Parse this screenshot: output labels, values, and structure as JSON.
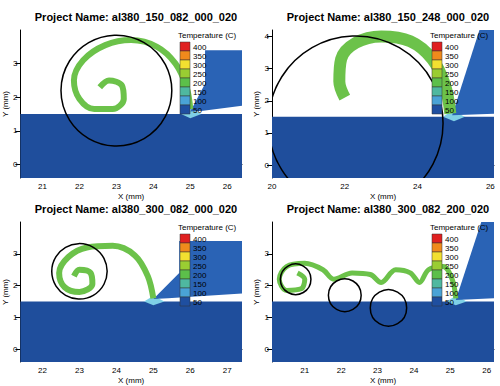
{
  "chart_data": [
    {
      "type": "contour",
      "title": "Project Name: al380_150_082_000_020",
      "x_label": "X (mm)",
      "y_label": "Y (mm)",
      "xlim": [
        20.4,
        26.4
      ],
      "xticks": [
        21,
        22,
        23,
        24,
        25,
        26
      ],
      "ylim": [
        -0.4,
        4.0
      ],
      "yticks": [
        0,
        1,
        2,
        3
      ],
      "workpiece": {
        "color": "#1f4e9c",
        "points": [
          [
            20.4,
            -0.4
          ],
          [
            26.4,
            -0.4
          ],
          [
            26.4,
            1.5
          ],
          [
            20.4,
            1.5
          ]
        ]
      },
      "heat_zone": {
        "color": "#7fd0e6",
        "points": [
          [
            24.75,
            1.5
          ],
          [
            25.0,
            1.68
          ],
          [
            25.3,
            1.5
          ],
          [
            25.0,
            1.38
          ]
        ]
      },
      "tool": {
        "color": "#2a63b5",
        "points": [
          [
            25.0,
            1.58
          ],
          [
            25.4,
            2.4
          ],
          [
            25.4,
            3.4
          ],
          [
            26.4,
            3.4
          ],
          [
            26.4,
            1.75
          ],
          [
            25.35,
            1.6
          ]
        ]
      },
      "chip": {
        "color": "#6cc24a",
        "points": [
          [
            25.0,
            1.65
          ],
          [
            24.9,
            2.3
          ],
          [
            24.6,
            3.0
          ],
          [
            24.1,
            3.5
          ],
          [
            23.4,
            3.7
          ],
          [
            22.7,
            3.55
          ],
          [
            22.1,
            3.1
          ],
          [
            21.85,
            2.5
          ],
          [
            22.0,
            1.95
          ],
          [
            22.4,
            1.65
          ],
          [
            22.9,
            1.65
          ],
          [
            23.2,
            1.95
          ],
          [
            23.15,
            2.35
          ],
          [
            22.8,
            2.5
          ],
          [
            22.55,
            2.3
          ]
        ]
      },
      "circle_color": "#000000",
      "circles": [
        {
          "center": [
            23.0,
            2.2
          ],
          "radius": 1.5
        }
      ],
      "colorbar": {
        "title": "Temperature (C)",
        "ticks": [
          50,
          100,
          150,
          200,
          250,
          300,
          350,
          400
        ],
        "colors": [
          "#1f4fa0",
          "#4aa3d6",
          "#4fb8a0",
          "#5cbf4a",
          "#9acd32",
          "#f2e030",
          "#f08a1c",
          "#e02020"
        ]
      }
    },
    {
      "type": "contour",
      "title": "Project Name: al380_150_248_000_020",
      "x_label": "X (mm)",
      "y_label": "Y (mm)",
      "xlim": [
        20.0,
        26.1
      ],
      "xticks": [
        20,
        22,
        24,
        26
      ],
      "ylim": [
        -0.4,
        4.2
      ],
      "yticks": [
        0,
        1,
        2,
        3,
        4
      ],
      "workpiece": {
        "color": "#1f4e9c",
        "points": [
          [
            20.0,
            -0.4
          ],
          [
            26.1,
            -0.4
          ],
          [
            26.1,
            1.5
          ],
          [
            20.0,
            1.5
          ]
        ]
      },
      "heat_zone": {
        "color": "#7fd0e6",
        "points": [
          [
            24.7,
            1.5
          ],
          [
            24.95,
            1.7
          ],
          [
            25.3,
            1.5
          ],
          [
            25.0,
            1.36
          ]
        ]
      },
      "tool": {
        "color": "#2a63b5",
        "points": [
          [
            24.95,
            1.55
          ],
          [
            25.7,
            4.2
          ],
          [
            26.1,
            4.2
          ],
          [
            26.1,
            1.6
          ]
        ]
      },
      "chip": {
        "color": "#6cc24a",
        "points": [
          [
            24.9,
            1.6
          ],
          [
            24.75,
            2.5
          ],
          [
            24.4,
            3.3
          ],
          [
            23.8,
            3.85
          ],
          [
            23.0,
            4.0
          ],
          [
            22.3,
            3.8
          ],
          [
            21.9,
            3.3
          ],
          [
            21.85,
            2.6
          ],
          [
            22.0,
            2.1
          ]
        ]
      },
      "circle_color": "#000000",
      "circles": [
        {
          "center": [
            22.3,
            1.3
          ],
          "radius": 2.4
        }
      ],
      "colorbar": {
        "title": "Temperature (C)",
        "ticks": [
          50,
          100,
          150,
          200,
          250,
          300,
          350,
          400
        ],
        "colors": [
          "#1f4fa0",
          "#4aa3d6",
          "#4fb8a0",
          "#5cbf4a",
          "#9acd32",
          "#f2e030",
          "#f08a1c",
          "#e02020"
        ]
      }
    },
    {
      "type": "contour",
      "title": "Project Name: al380_300_082_000_020",
      "x_label": "X (mm)",
      "y_label": "Y (mm)",
      "xlim": [
        21.4,
        27.4
      ],
      "xticks": [
        22,
        23,
        24,
        25,
        26,
        27
      ],
      "ylim": [
        -0.4,
        4.0
      ],
      "yticks": [
        0,
        1,
        2,
        3
      ],
      "workpiece": {
        "color": "#1f4e9c",
        "points": [
          [
            21.4,
            -0.4
          ],
          [
            27.4,
            -0.4
          ],
          [
            27.4,
            1.5
          ],
          [
            21.4,
            1.5
          ]
        ]
      },
      "heat_zone": {
        "color": "#7fd0e6",
        "points": [
          [
            24.75,
            1.5
          ],
          [
            25.0,
            1.68
          ],
          [
            25.3,
            1.5
          ],
          [
            25.0,
            1.38
          ]
        ]
      },
      "tool": {
        "color": "#2a63b5",
        "points": [
          [
            25.0,
            1.58
          ],
          [
            25.7,
            2.4
          ],
          [
            25.7,
            3.4
          ],
          [
            27.4,
            3.4
          ],
          [
            27.4,
            1.75
          ],
          [
            25.4,
            1.6
          ]
        ]
      },
      "chip": {
        "color": "#6cc24a",
        "points": [
          [
            25.0,
            1.6
          ],
          [
            24.85,
            2.3
          ],
          [
            24.5,
            2.95
          ],
          [
            23.9,
            3.25
          ],
          [
            23.2,
            3.2
          ],
          [
            22.7,
            2.9
          ],
          [
            22.45,
            2.4
          ],
          [
            22.6,
            1.95
          ],
          [
            23.0,
            1.8
          ],
          [
            23.35,
            2.05
          ],
          [
            23.3,
            2.4
          ],
          [
            23.0,
            2.5
          ],
          [
            22.85,
            2.3
          ]
        ]
      },
      "circle_color": "#000000",
      "circles": [
        {
          "center": [
            23.0,
            2.45
          ],
          "radius": 0.75
        }
      ],
      "colorbar": {
        "title": "Temperature (C)",
        "ticks": [
          50,
          100,
          150,
          200,
          250,
          300,
          350,
          400
        ],
        "colors": [
          "#1f4fa0",
          "#4aa3d6",
          "#4fb8a0",
          "#5cbf4a",
          "#9acd32",
          "#f2e030",
          "#f08a1c",
          "#e02020"
        ]
      }
    },
    {
      "type": "contour",
      "title": "Project Name: al380_300_082_200_020",
      "x_label": "X (mm)",
      "y_label": "Y (mm)",
      "xlim": [
        20.1,
        26.2
      ],
      "xticks": [
        21,
        22,
        23,
        24,
        25,
        26
      ],
      "ylim": [
        -0.4,
        4.0
      ],
      "yticks": [
        0,
        1,
        2,
        3
      ],
      "workpiece": {
        "color": "#1f4e9c",
        "points": [
          [
            20.1,
            -0.4
          ],
          [
            26.2,
            -0.4
          ],
          [
            26.2,
            1.5
          ],
          [
            20.1,
            1.5
          ]
        ]
      },
      "heat_zone": {
        "color": "#7fd0e6",
        "points": [
          [
            24.9,
            1.5
          ],
          [
            25.15,
            1.68
          ],
          [
            25.45,
            1.5
          ],
          [
            25.15,
            1.38
          ]
        ]
      },
      "tool": {
        "color": "#2a63b5",
        "points": [
          [
            25.15,
            1.55
          ],
          [
            25.85,
            4.0
          ],
          [
            26.2,
            4.0
          ],
          [
            26.2,
            1.6
          ]
        ]
      },
      "chip": {
        "color": "#6cc24a",
        "points": [
          [
            25.15,
            1.6
          ],
          [
            25.05,
            2.2
          ],
          [
            24.8,
            2.6
          ],
          [
            24.4,
            2.5
          ],
          [
            24.15,
            2.1
          ],
          [
            23.9,
            2.4
          ],
          [
            23.5,
            2.5
          ],
          [
            23.1,
            2.1
          ],
          [
            22.8,
            2.35
          ],
          [
            22.3,
            2.4
          ],
          [
            21.8,
            2.2
          ],
          [
            21.5,
            2.5
          ],
          [
            21.0,
            2.7
          ],
          [
            20.5,
            2.6
          ],
          [
            20.3,
            2.2
          ],
          [
            20.5,
            1.85
          ],
          [
            20.9,
            1.9
          ],
          [
            21.0,
            2.2
          ],
          [
            20.8,
            2.4
          ]
        ]
      },
      "circle_color": "#000000",
      "circles": [
        {
          "center": [
            20.75,
            2.2
          ],
          "radius": 0.42
        },
        {
          "center": [
            22.1,
            1.7
          ],
          "radius": 0.45
        },
        {
          "center": [
            23.3,
            1.3
          ],
          "radius": 0.5
        }
      ],
      "colorbar": {
        "title": "Temperature (C)",
        "ticks": [
          50,
          100,
          150,
          200,
          250,
          300,
          350,
          400
        ],
        "colors": [
          "#1f4fa0",
          "#4aa3d6",
          "#4fb8a0",
          "#5cbf4a",
          "#9acd32",
          "#f2e030",
          "#f08a1c",
          "#e02020"
        ]
      }
    }
  ]
}
